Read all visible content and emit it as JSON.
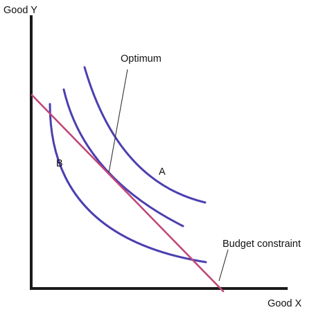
{
  "axes": {
    "y_label": "Good Y",
    "x_label": "Good X"
  },
  "labels": {
    "optimum": "Optimum",
    "budget_constraint": "Budget constraint",
    "curve_a": "A",
    "curve_b": "B"
  },
  "colors": {
    "indifference_curves": "#4b3fb0",
    "budget_line": "#c04678",
    "axes": "#1a1a1a"
  }
}
